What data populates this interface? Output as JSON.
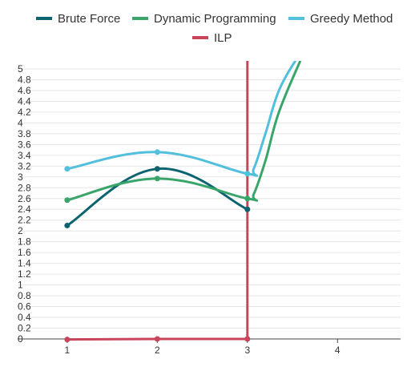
{
  "chart_data": {
    "type": "line",
    "title": "",
    "xlabel": "",
    "ylabel": "",
    "x": [
      1,
      2,
      3
    ],
    "x_ticks": [
      "1",
      "2",
      "3",
      "4"
    ],
    "y_ticks": [
      "0",
      "0.2",
      "0.4",
      "0.6",
      "0.8",
      "1",
      "1.2",
      "1.4",
      "1.6",
      "1.8",
      "2",
      "2.2",
      "2.4",
      "2.6",
      "2.8",
      "3",
      "3.2",
      "3.4",
      "3.6",
      "3.8",
      "4",
      "4.2",
      "4.4",
      "4.6",
      "4.8",
      "5"
    ],
    "ylim": [
      0,
      5
    ],
    "xlim": [
      0.45,
      4.7
    ],
    "grid": true,
    "legend_position": "top",
    "curve": "smooth",
    "series": [
      {
        "name": "Brute Force",
        "color": "#0b6470",
        "values": [
          2.1,
          3.15,
          2.4
        ]
      },
      {
        "name": "Dynamic Programming",
        "color": "#3aa56b",
        "values": [
          2.57,
          2.97,
          2.6
        ],
        "trail": [
          [
            3.07,
            2.68
          ],
          [
            3.2,
            3.3
          ],
          [
            3.35,
            4.2
          ],
          [
            3.6,
            5.2
          ]
        ]
      },
      {
        "name": "Greedy Method",
        "color": "#52bfdc",
        "values": [
          3.15,
          3.46,
          3.06
        ],
        "trail": [
          [
            3.07,
            3.15
          ],
          [
            3.2,
            3.8
          ],
          [
            3.35,
            4.6
          ],
          [
            3.55,
            5.2
          ]
        ]
      },
      {
        "name": "ILP",
        "color": "#c9455c",
        "values": [
          -0.01,
          0.0,
          0.0
        ],
        "spike": {
          "x": 3.0,
          "ytop": 5.2
        }
      }
    ]
  }
}
